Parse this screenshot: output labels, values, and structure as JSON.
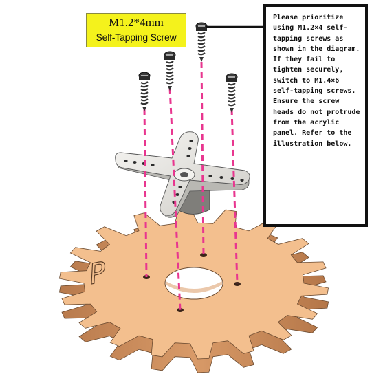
{
  "screw_label": {
    "size": "M1.2*4mm",
    "kind": "Self-Tapping Screw"
  },
  "note": {
    "text": "Please prioritize using M1.2×4 self-tapping screws as shown in the diagram. If they fail to tighten securely, switch to M1.4×6 self-tapping screws. Ensure the screw heads do not protrude from the acrylic panel. Refer to the illustration below."
  },
  "gear": {
    "engraving": "P",
    "teeth": 18
  },
  "colors": {
    "label_bg": "#f4f21c",
    "guide_line": "#e8368f",
    "gear_face": "#f3bf8e",
    "gear_side": "#c98a58",
    "horn": "#ecebe8"
  }
}
